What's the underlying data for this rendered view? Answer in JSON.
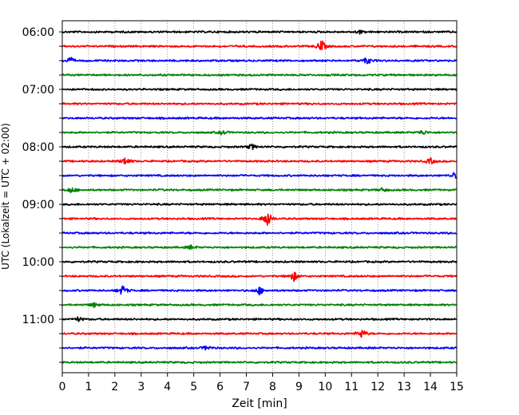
{
  "chart_data": {
    "type": "line",
    "title": "",
    "xlabel": "Zeit  [min]",
    "ylabel": "UTC (Lokalzeit = UTC + 02:00)",
    "xlim": [
      0,
      15
    ],
    "x_ticks": [
      0,
      1,
      2,
      3,
      4,
      5,
      6,
      7,
      8,
      9,
      10,
      11,
      12,
      13,
      14,
      15
    ],
    "x_tick_labels": [
      "0",
      "1",
      "2",
      "3",
      "4",
      "5",
      "6",
      "7",
      "8",
      "9",
      "10",
      "11",
      "12",
      "13",
      "14",
      "15"
    ],
    "y_tick_labels": [
      "06:00",
      "07:00",
      "08:00",
      "09:00",
      "10:00",
      "11:00"
    ],
    "grid_x": true,
    "grid_style": "dotted",
    "trace_colors": [
      "#000000",
      "#ff0000",
      "#0000ff",
      "#008000"
    ],
    "series": [
      {
        "start": "06:00",
        "color": "#000000",
        "events": [
          {
            "t": 11.3,
            "a": 0.25
          }
        ]
      },
      {
        "start": "06:15",
        "color": "#ff0000",
        "events": [
          {
            "t": 9.85,
            "a": 0.9
          }
        ]
      },
      {
        "start": "06:30",
        "color": "#0000ff",
        "events": [
          {
            "t": 0.3,
            "a": 0.45
          },
          {
            "t": 11.6,
            "a": 0.5
          }
        ]
      },
      {
        "start": "06:45",
        "color": "#008000",
        "events": []
      },
      {
        "start": "07:00",
        "color": "#000000",
        "events": []
      },
      {
        "start": "07:15",
        "color": "#ff0000",
        "events": []
      },
      {
        "start": "07:30",
        "color": "#0000ff",
        "events": []
      },
      {
        "start": "07:45",
        "color": "#008000",
        "events": [
          {
            "t": 6.1,
            "a": 0.3
          },
          {
            "t": 13.7,
            "a": 0.35
          }
        ]
      },
      {
        "start": "08:00",
        "color": "#000000",
        "events": [
          {
            "t": 7.2,
            "a": 0.4
          }
        ]
      },
      {
        "start": "08:15",
        "color": "#ff0000",
        "events": [
          {
            "t": 2.4,
            "a": 0.6
          },
          {
            "t": 14.0,
            "a": 0.45
          }
        ]
      },
      {
        "start": "08:30",
        "color": "#0000ff",
        "events": [
          {
            "t": 14.9,
            "a": 0.4
          }
        ]
      },
      {
        "start": "08:45",
        "color": "#008000",
        "events": [
          {
            "t": 0.35,
            "a": 0.45
          },
          {
            "t": 12.2,
            "a": 0.3
          }
        ]
      },
      {
        "start": "09:00",
        "color": "#000000",
        "events": []
      },
      {
        "start": "09:15",
        "color": "#ff0000",
        "events": [
          {
            "t": 7.8,
            "a": 1.2
          }
        ]
      },
      {
        "start": "09:30",
        "color": "#0000ff",
        "events": []
      },
      {
        "start": "09:45",
        "color": "#008000",
        "events": [
          {
            "t": 4.9,
            "a": 0.3
          }
        ]
      },
      {
        "start": "10:00",
        "color": "#000000",
        "events": []
      },
      {
        "start": "10:15",
        "color": "#ff0000",
        "events": [
          {
            "t": 8.8,
            "a": 0.7
          }
        ]
      },
      {
        "start": "10:30",
        "color": "#0000ff",
        "events": [
          {
            "t": 2.3,
            "a": 0.75
          },
          {
            "t": 7.5,
            "a": 0.55
          }
        ]
      },
      {
        "start": "10:45",
        "color": "#008000",
        "events": [
          {
            "t": 1.2,
            "a": 0.3
          }
        ]
      },
      {
        "start": "11:00",
        "color": "#000000",
        "events": [
          {
            "t": 0.6,
            "a": 0.3
          }
        ]
      },
      {
        "start": "11:15",
        "color": "#ff0000",
        "events": [
          {
            "t": 11.4,
            "a": 0.65
          }
        ]
      },
      {
        "start": "11:30",
        "color": "#0000ff",
        "events": [
          {
            "t": 5.5,
            "a": 0.35
          }
        ]
      },
      {
        "start": "11:45",
        "color": "#008000",
        "events": []
      }
    ]
  }
}
